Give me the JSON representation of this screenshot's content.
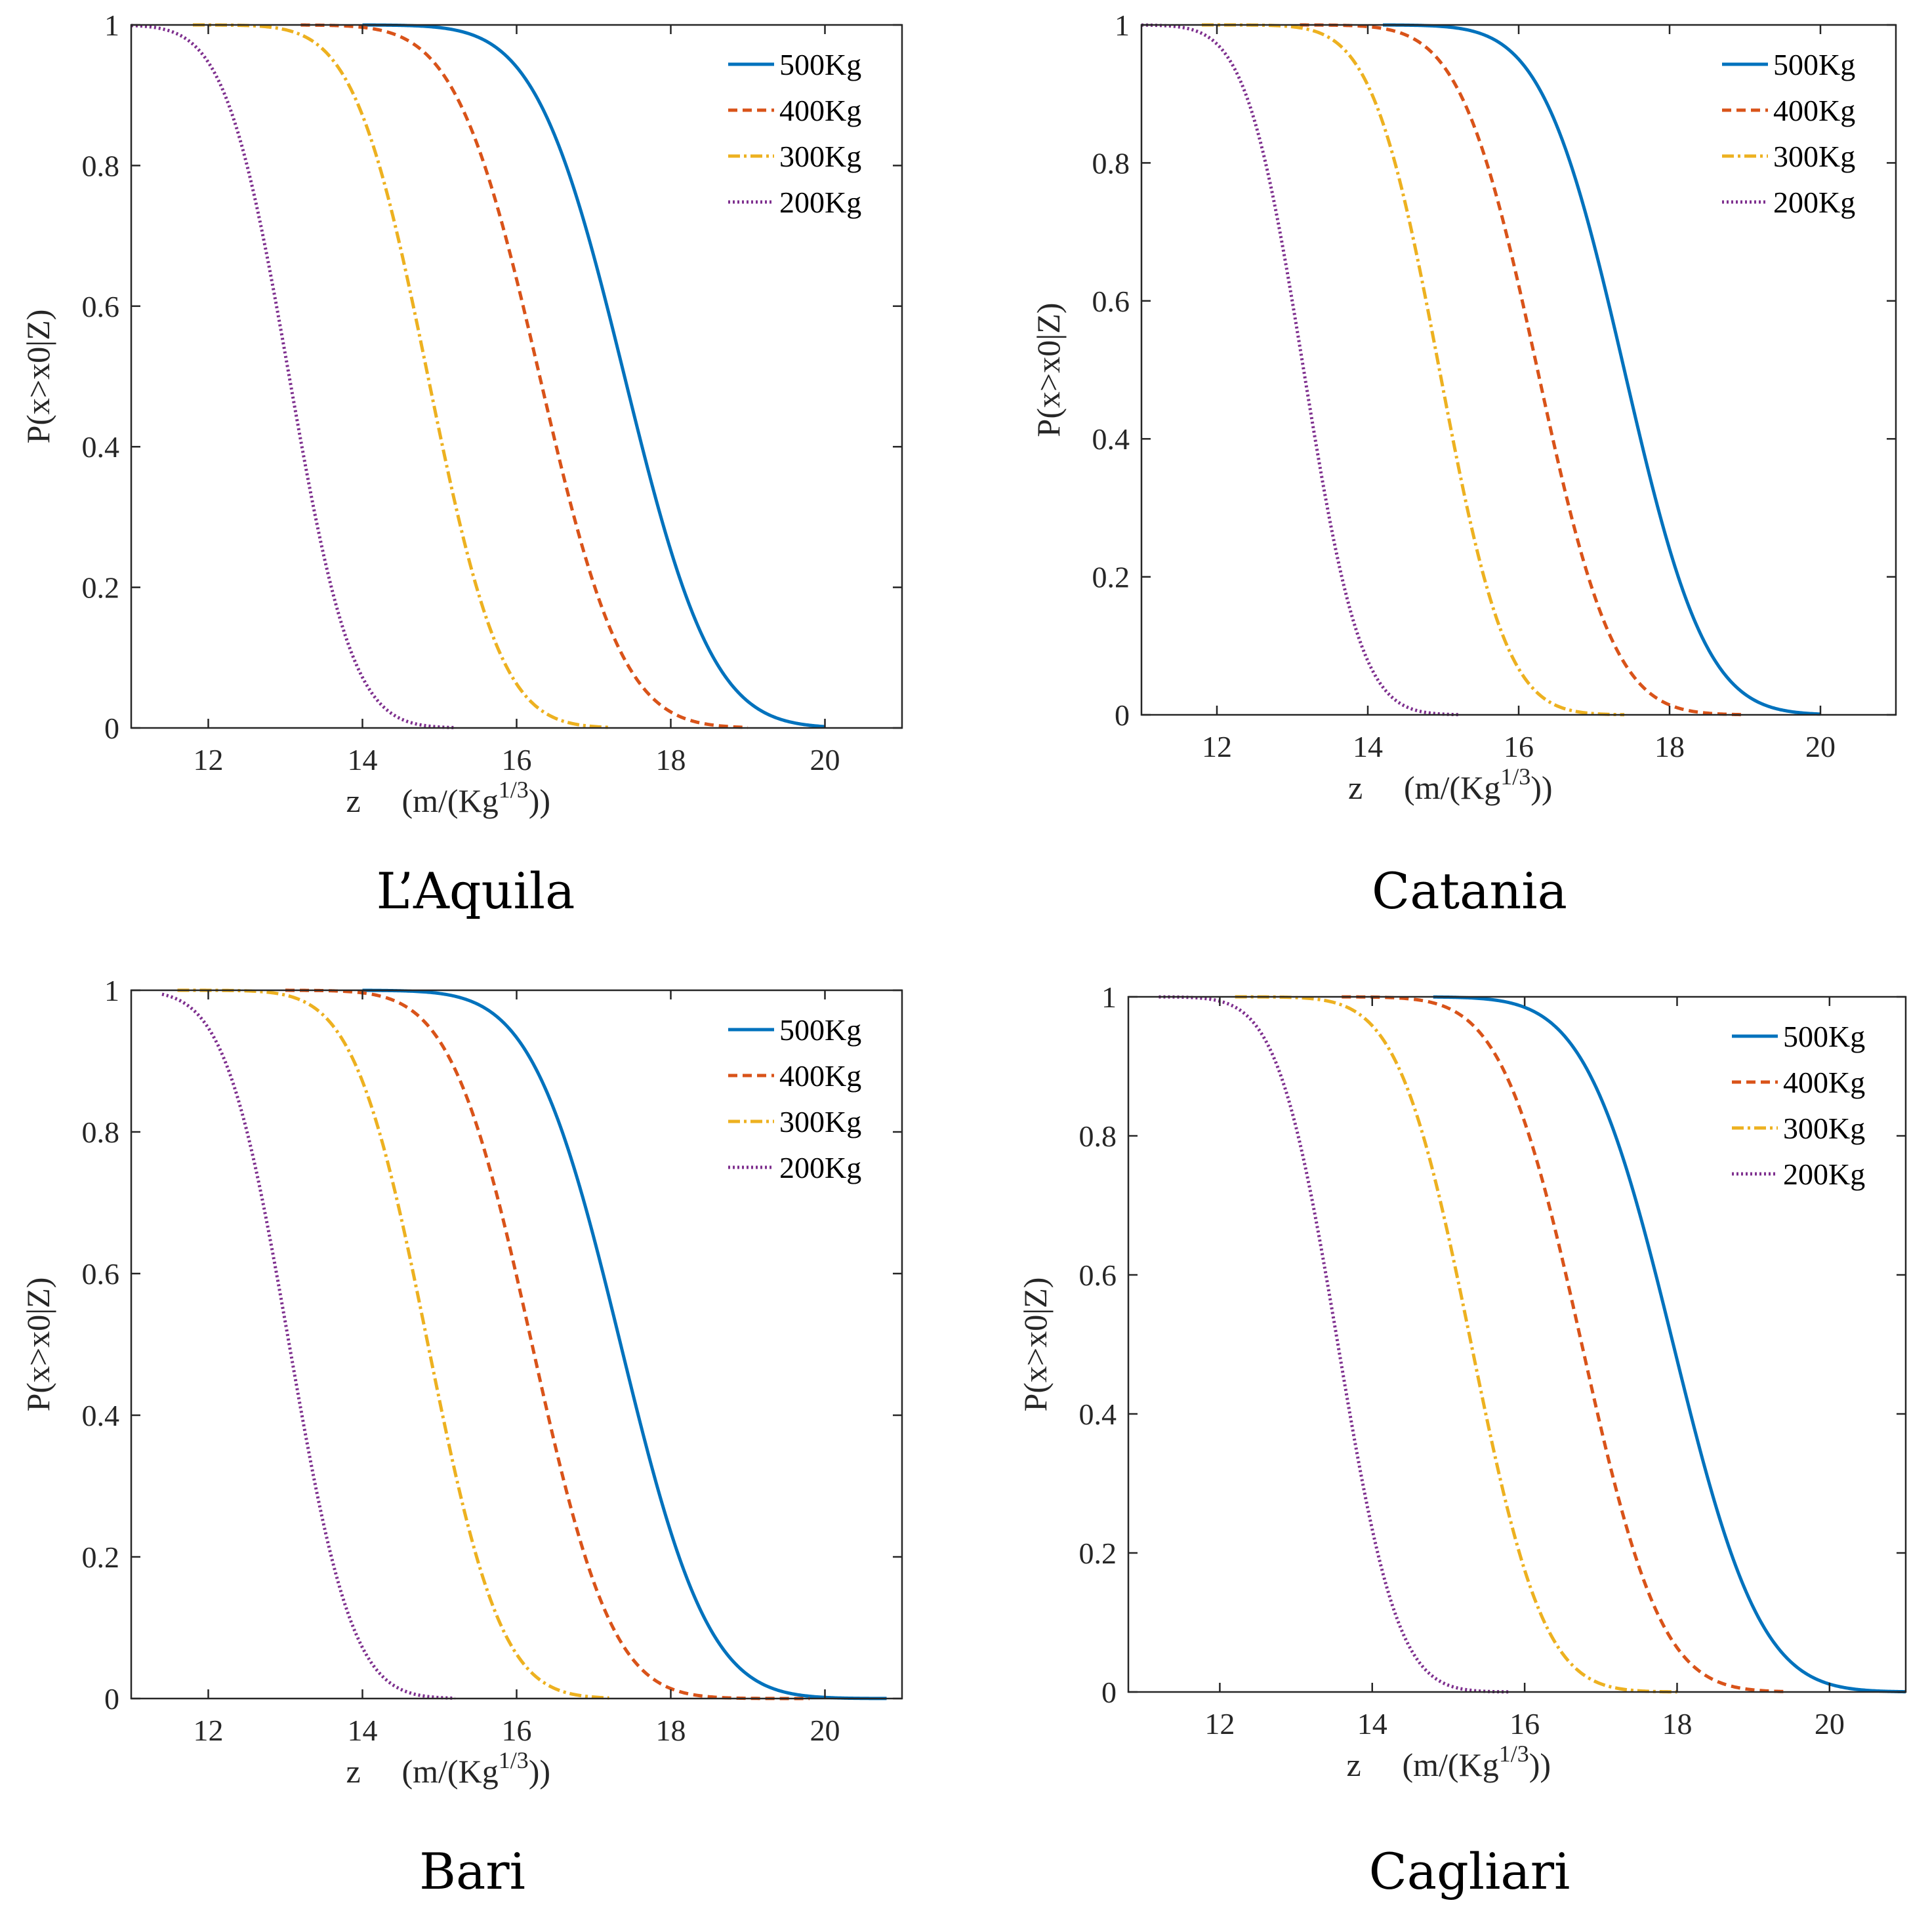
{
  "chart_data": [
    {
      "type": "line",
      "caption": "L’Aquila",
      "xlabel_z": "z",
      "xlabel_unit": "(m/(Kg",
      "xlabel_exp": "1/3",
      "xlabel_close": "))",
      "ylabel": "P(x>x0|Z)",
      "xlim": [
        11,
        21
      ],
      "ylim": [
        0,
        1
      ],
      "xticks": [
        "12",
        "14",
        "16",
        "18",
        "20"
      ],
      "yticks": [
        "0",
        "0.2",
        "0.4",
        "0.6",
        "0.8",
        "1"
      ],
      "legend_position": "top-right",
      "series": [
        {
          "name": "500Kg",
          "color": "#0072BD",
          "style": "solid",
          "mu": 17.4,
          "sigma": 0.9,
          "x_start": 14.0,
          "x_end": 20.0
        },
        {
          "name": "400Kg",
          "color": "#D95319",
          "style": "dashed",
          "mu": 16.3,
          "sigma": 0.85,
          "x_start": 13.2,
          "x_end": 19.0
        },
        {
          "name": "300Kg",
          "color": "#EDB120",
          "style": "dashdot",
          "mu": 14.85,
          "sigma": 0.75,
          "x_start": 11.8,
          "x_end": 17.2
        },
        {
          "name": "200Kg",
          "color": "#7E2F8E",
          "style": "dotted",
          "mu": 13.05,
          "sigma": 0.65,
          "x_start": 11.0,
          "x_end": 15.2
        }
      ]
    },
    {
      "type": "line",
      "caption": "Catania",
      "xlabel_z": "z",
      "xlabel_unit": "(m/(Kg",
      "xlabel_exp": "1/3",
      "xlabel_close": "))",
      "ylabel": "P(x>x0|Z)",
      "xlim": [
        11,
        21
      ],
      "ylim": [
        0,
        1
      ],
      "xticks": [
        "12",
        "14",
        "16",
        "18",
        "20"
      ],
      "yticks": [
        "0",
        "0.2",
        "0.4",
        "0.6",
        "0.8",
        "1"
      ],
      "legend_position": "top-right",
      "series": [
        {
          "name": "500Kg",
          "color": "#0072BD",
          "style": "solid",
          "mu": 17.4,
          "sigma": 0.85,
          "x_start": 14.2,
          "x_end": 20.0
        },
        {
          "name": "400Kg",
          "color": "#D95319",
          "style": "dashed",
          "mu": 16.25,
          "sigma": 0.8,
          "x_start": 13.1,
          "x_end": 19.0
        },
        {
          "name": "300Kg",
          "color": "#EDB120",
          "style": "dashdot",
          "mu": 14.95,
          "sigma": 0.7,
          "x_start": 11.8,
          "x_end": 17.4
        },
        {
          "name": "200Kg",
          "color": "#7E2F8E",
          "style": "dotted",
          "mu": 13.15,
          "sigma": 0.6,
          "x_start": 11.0,
          "x_end": 15.2
        }
      ]
    },
    {
      "type": "line",
      "caption": "Bari",
      "xlabel_z": "z",
      "xlabel_unit": "(m/(Kg",
      "xlabel_exp": "1/3",
      "xlabel_close": "))",
      "ylabel": "P(x>x0|Z)",
      "xlim": [
        11,
        21
      ],
      "ylim": [
        0,
        1
      ],
      "xticks": [
        "12",
        "14",
        "16",
        "18",
        "20"
      ],
      "yticks": [
        "0",
        "0.2",
        "0.4",
        "0.6",
        "0.8",
        "1"
      ],
      "legend_position": "top-right",
      "series": [
        {
          "name": "500Kg",
          "color": "#0072BD",
          "style": "solid",
          "mu": 17.35,
          "sigma": 0.9,
          "x_start": 14.0,
          "x_end": 20.8
        },
        {
          "name": "400Kg",
          "color": "#D95319",
          "style": "dashed",
          "mu": 16.2,
          "sigma": 0.82,
          "x_start": 13.0,
          "x_end": 19.8
        },
        {
          "name": "300Kg",
          "color": "#EDB120",
          "style": "dashdot",
          "mu": 14.85,
          "sigma": 0.75,
          "x_start": 11.6,
          "x_end": 17.2
        },
        {
          "name": "200Kg",
          "color": "#7E2F8E",
          "style": "dotted",
          "mu": 13.05,
          "sigma": 0.65,
          "x_start": 11.4,
          "x_end": 15.2
        }
      ]
    },
    {
      "type": "line",
      "caption": "Cagliari",
      "xlabel_z": "z",
      "xlabel_unit": "(m/(Kg",
      "xlabel_exp": "1/3",
      "xlabel_close": "))",
      "ylabel": "P(x>x0|Z)",
      "xlim": [
        10.8,
        21
      ],
      "ylim": [
        0,
        1
      ],
      "xticks": [
        "12",
        "14",
        "16",
        "18",
        "20"
      ],
      "yticks": [
        "0",
        "0.2",
        "0.4",
        "0.6",
        "0.8",
        "1"
      ],
      "legend_position": "top-right",
      "series": [
        {
          "name": "500Kg",
          "color": "#0072BD",
          "style": "solid",
          "mu": 17.95,
          "sigma": 0.9,
          "x_start": 14.8,
          "x_end": 21.0
        },
        {
          "name": "400Kg",
          "color": "#D95319",
          "style": "dashed",
          "mu": 16.75,
          "sigma": 0.82,
          "x_start": 13.6,
          "x_end": 19.4
        },
        {
          "name": "300Kg",
          "color": "#EDB120",
          "style": "dashdot",
          "mu": 15.3,
          "sigma": 0.75,
          "x_start": 12.2,
          "x_end": 18.0
        },
        {
          "name": "200Kg",
          "color": "#7E2F8E",
          "style": "dotted",
          "mu": 13.55,
          "sigma": 0.62,
          "x_start": 11.2,
          "x_end": 15.8
        }
      ]
    }
  ]
}
